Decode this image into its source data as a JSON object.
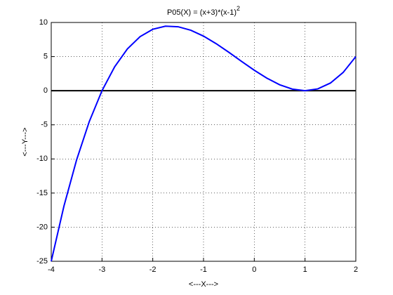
{
  "chart_data": {
    "type": "line",
    "title": "P05(X) = (x+3)*(x-1)",
    "title_superscript": "2",
    "x_label": "<---X--->",
    "y_label": "<---Y--->",
    "x": [
      -4,
      -3.75,
      -3.5,
      -3.25,
      -3,
      -2.75,
      -2.5,
      -2.25,
      -2,
      -1.75,
      -1.5,
      -1.25,
      -1,
      -0.75,
      -0.5,
      -0.25,
      0,
      0.25,
      0.5,
      0.75,
      1,
      1.25,
      1.5,
      1.75,
      2
    ],
    "series": [
      {
        "color": "#0000ff",
        "values": [
          -25,
          -16.921875,
          -10.125,
          -4.515625,
          0,
          3.515625,
          6.125,
          7.921875,
          9,
          9.453125,
          9.375,
          8.859375,
          8,
          6.890625,
          5.625,
          4.296875,
          3,
          1.828125,
          0.875,
          0.234375,
          0,
          0.265625,
          1.125,
          2.671875,
          5
        ]
      }
    ],
    "reference_line": 0,
    "reference_color": "#000000",
    "xlim": [
      -4,
      2
    ],
    "ylim": [
      -25,
      10
    ],
    "xticks": [
      -4,
      -3,
      -2,
      -1,
      0,
      1,
      2
    ],
    "yticks": [
      -25,
      -20,
      -15,
      -10,
      -5,
      0,
      5,
      10
    ],
    "grid": true
  }
}
